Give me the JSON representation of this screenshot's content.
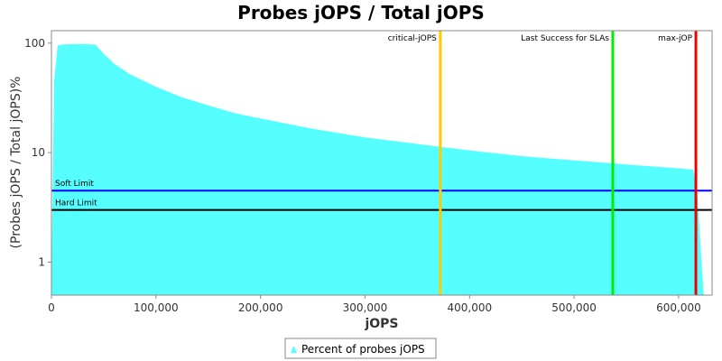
{
  "chart_data": {
    "type": "area",
    "title": "Probes jOPS / Total jOPS",
    "xlabel": "jOPS",
    "ylabel": "(Probes jOPS / Total jOPS)%",
    "y_scale": "log",
    "xlim": [
      0,
      632000
    ],
    "ylim": [
      0.5,
      130
    ],
    "x_ticks": [
      0,
      100000,
      200000,
      300000,
      400000,
      500000,
      600000
    ],
    "x_tick_labels": [
      "0",
      "100,000",
      "200,000",
      "300,000",
      "400,000",
      "500,000",
      "600,000"
    ],
    "y_ticks": [
      1,
      10,
      100
    ],
    "y_tick_labels": [
      "1",
      "10",
      "100"
    ],
    "grid": false,
    "legend_position": "bottom",
    "series": [
      {
        "name": "Percent of probes jOPS",
        "color": "#55ffff",
        "x": [
          0,
          2500,
          6000,
          10000,
          20000,
          30000,
          42000,
          50000,
          60000,
          75000,
          100000,
          125000,
          150000,
          175000,
          200000,
          250000,
          300000,
          350000,
          372000,
          400000,
          450000,
          500000,
          537000,
          550000,
          600000,
          614000,
          618000,
          622000,
          624000
        ],
        "y": [
          0.6,
          45,
          95,
          97,
          98,
          98,
          97,
          80,
          65,
          52,
          40,
          32,
          27,
          23,
          20.5,
          16.5,
          13.8,
          12,
          11.3,
          10.5,
          9.3,
          8.5,
          8.0,
          7.8,
          7.2,
          7.0,
          4.0,
          1.0,
          0.5
        ]
      }
    ],
    "hlines": [
      {
        "label": "Soft Limit",
        "y": 4.5,
        "color": "#0000ff"
      },
      {
        "label": "Hard Limit",
        "y": 3.0,
        "color": "#000000"
      }
    ],
    "vlines": [
      {
        "label": "critical-jOPS",
        "x": 372000,
        "color": "#ffcc00"
      },
      {
        "label": "Last Success for SLAs",
        "x": 537000,
        "color": "#00ee00"
      },
      {
        "label": "max-jOP",
        "x": 616500,
        "color": "#ee0000"
      }
    ]
  }
}
